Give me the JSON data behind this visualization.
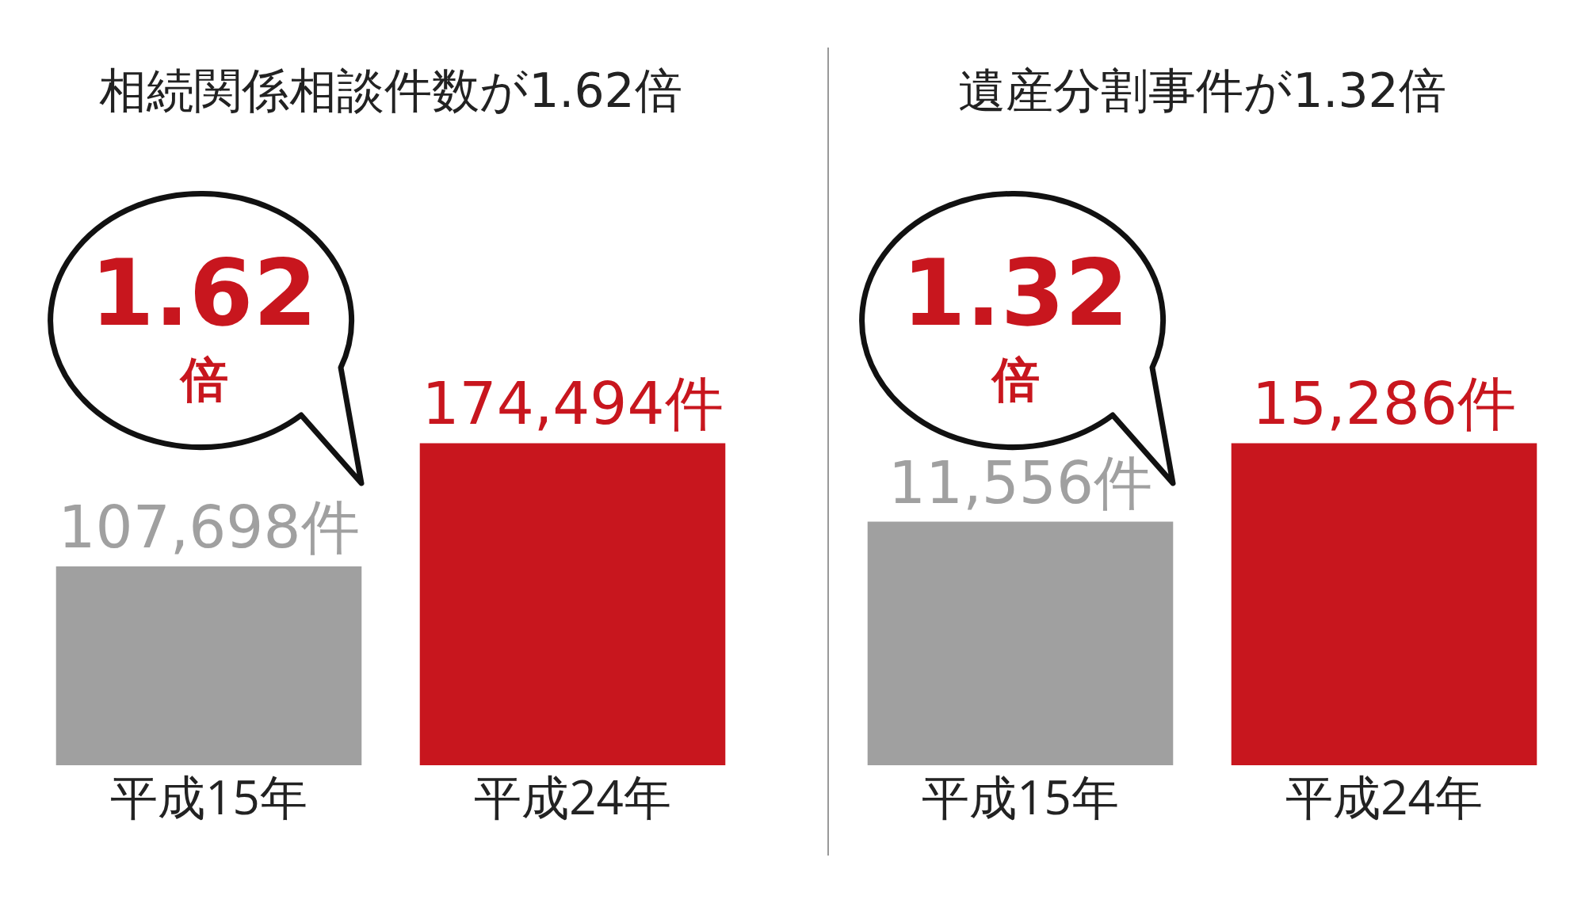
{
  "chart_data": [
    {
      "type": "bar",
      "title": "相続関係相談件数が1.62倍",
      "categories": [
        "平成15年",
        "平成24年"
      ],
      "values": [
        107698,
        174494
      ],
      "colors": [
        "#a0a0a0",
        "#c8161e"
      ],
      "value_labels": [
        "107,698件",
        "174,494件"
      ],
      "tick_labels": "x",
      "grid": false,
      "legend": false,
      "annotations": [
        "1.62\n倍"
      ]
    },
    {
      "type": "bar",
      "title": "遺産分割事件が1.32倍",
      "categories": [
        "平成15年",
        "平成24年"
      ],
      "values": [
        11556,
        15286
      ],
      "colors": [
        "#a0a0a0",
        "#c8161e"
      ],
      "value_labels": [
        "11,556件",
        "15,286件"
      ],
      "tick_labels": "x",
      "grid": false,
      "legend": false,
      "annotations": [
        "1.32\n倍"
      ]
    }
  ]
}
